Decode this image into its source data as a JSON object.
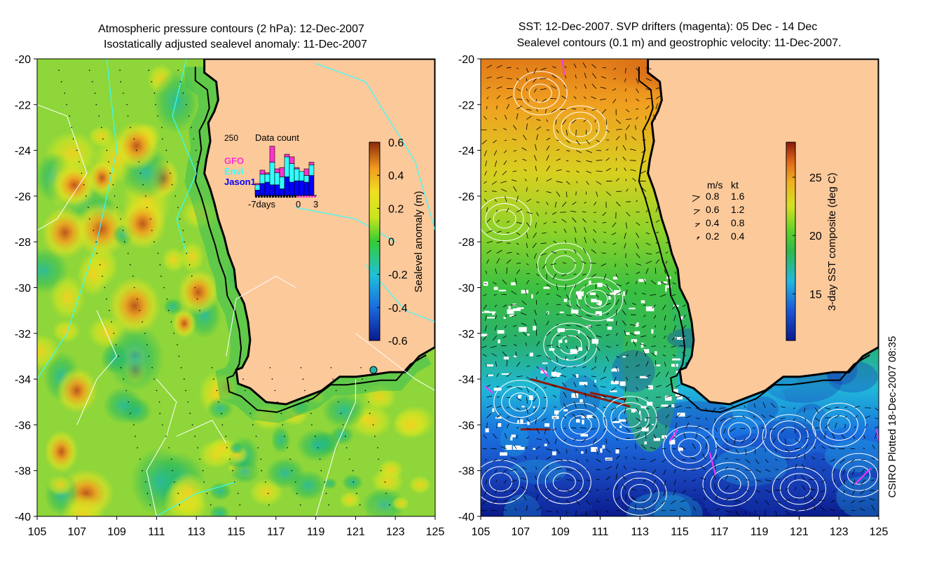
{
  "chart_data": [
    {
      "type": "heatmap",
      "title_line1": "Atmospheric pressure contours (2 hPa): 12-Dec-2007",
      "title_line2": "Isostatically adjusted sealevel anomaly: 11-Dec-2007",
      "x_ticks": [
        "105",
        "107",
        "109",
        "111",
        "113",
        "115",
        "117",
        "119",
        "121",
        "123",
        "125"
      ],
      "y_ticks": [
        "-20",
        "-22",
        "-24",
        "-26",
        "-28",
        "-30",
        "-32",
        "-34",
        "-36",
        "-38",
        "-40"
      ],
      "xlim": [
        105,
        125
      ],
      "ylim": [
        -40,
        -20
      ],
      "colorbar": {
        "label": "Sealevel anomaly (m)",
        "ticks": [
          "0.6",
          "0.4",
          "0.2",
          "0",
          "-0.2",
          "-0.4",
          "-0.6"
        ],
        "range": [
          -0.6,
          0.6
        ]
      },
      "inset": {
        "title": "Data count",
        "max_label": "250",
        "x_labels": [
          "-7days",
          "0",
          "3"
        ],
        "legend": [
          {
            "label": "GFO",
            "color": "#ff33cc"
          },
          {
            "label": "Envi",
            "color": "#33ffff"
          },
          {
            "label": "Jason1",
            "color": "#0000ff"
          }
        ],
        "bars": [
          {
            "gfo": 5,
            "envi": 20,
            "jason": 20
          },
          {
            "gfo": 15,
            "envi": 35,
            "jason": 45
          },
          {
            "gfo": 5,
            "envi": 30,
            "jason": 50
          },
          {
            "gfo": 60,
            "envi": 85,
            "jason": 40
          },
          {
            "gfo": 15,
            "envi": 45,
            "jason": 40
          },
          {
            "gfo": 35,
            "envi": 45,
            "jason": 25
          },
          {
            "gfo": 10,
            "envi": 75,
            "jason": 70
          },
          {
            "gfo": 25,
            "envi": 70,
            "jason": 50
          },
          {
            "gfo": 5,
            "envi": 45,
            "jason": 55
          },
          {
            "gfo": 0,
            "envi": 35,
            "jason": 55
          },
          {
            "gfo": 25,
            "envi": 25,
            "jason": 50
          },
          {
            "gfo": 10,
            "envi": 40,
            "jason": 75
          }
        ]
      },
      "anomaly_highs": [
        {
          "lon": 106.4,
          "lat": -27.6,
          "value": 0.35
        },
        {
          "lon": 110.0,
          "lat": -23.8,
          "value": 0.3
        },
        {
          "lon": 110.3,
          "lat": -27.2,
          "value": 0.35
        },
        {
          "lon": 109.9,
          "lat": -30.8,
          "value": 0.45
        },
        {
          "lon": 113.1,
          "lat": -30.2,
          "value": 0.25
        },
        {
          "lon": 107.0,
          "lat": -34.5,
          "value": 0.25
        }
      ],
      "coast_station": {
        "lon": 121.9,
        "lat": -33.6
      }
    },
    {
      "type": "heatmap",
      "title_line1": "SST: 12-Dec-2007. SVP drifters (magenta): 05 Dec - 14 Dec",
      "title_line2": "Sealevel contours (0.1 m) and geostrophic velocity: 11-Dec-2007.",
      "x_ticks": [
        "105",
        "107",
        "109",
        "111",
        "113",
        "115",
        "117",
        "119",
        "121",
        "123",
        "125"
      ],
      "y_ticks": [
        "-20",
        "-22",
        "-24",
        "-26",
        "-28",
        "-30",
        "-32",
        "-34",
        "-36",
        "-38",
        "-40"
      ],
      "xlim": [
        105,
        125
      ],
      "ylim": [
        -40,
        -20
      ],
      "colorbar": {
        "label": "3-day SST composite (deg C)",
        "ticks": [
          "25",
          "20",
          "15"
        ],
        "range": [
          11,
          28
        ]
      },
      "speed_legend": {
        "header_ms": "m/s",
        "header_kt": "kt",
        "rows": [
          {
            "ms": "0.8",
            "kt": "1.6"
          },
          {
            "ms": "0.6",
            "kt": "1.2"
          },
          {
            "ms": "0.4",
            "kt": "0.8"
          },
          {
            "ms": "0.2",
            "kt": "0.4"
          }
        ]
      }
    }
  ],
  "footer": {
    "credit": "CSIRO Plotted 18-Dec-2007 08:35"
  },
  "colors": {
    "land": "#fcc99b",
    "coast": "#000000",
    "pressure_contour": "#33ffff",
    "sealevel_contour": "#ffffff",
    "drifter": "#ff33ff"
  }
}
